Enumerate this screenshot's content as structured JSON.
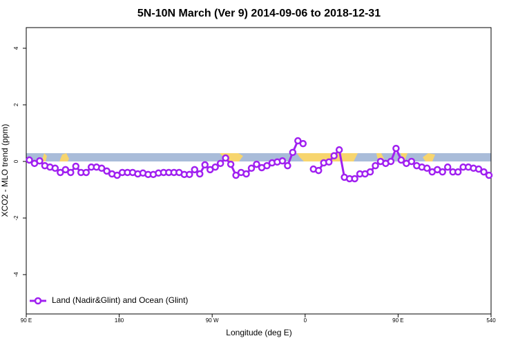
{
  "chart_data": {
    "type": "line",
    "title": "5N-10N March (Ver 9)   2014-09-06 to 2018-12-31",
    "x_label": "Longitude (deg E)",
    "y_label": "XCO2 - MLO trend (ppm)",
    "x": [
      93,
      98,
      103,
      108,
      113,
      118,
      123,
      128,
      133,
      138,
      143,
      148,
      153,
      158,
      163,
      168,
      173,
      178,
      183,
      188,
      193,
      198,
      203,
      208,
      213,
      218,
      223,
      228,
      233,
      238,
      243,
      248,
      253,
      258,
      263,
      268,
      273,
      278,
      283,
      288,
      293,
      298,
      303,
      308,
      313,
      318,
      323,
      328,
      333,
      338,
      343,
      348,
      353,
      358,
      363,
      368,
      373,
      378,
      383,
      388,
      393,
      398,
      403,
      408,
      413,
      418,
      423,
      428,
      433,
      438,
      443,
      448,
      453,
      458,
      463,
      468,
      473,
      478,
      483,
      488,
      493,
      498,
      503,
      508,
      513,
      518,
      523,
      528,
      533,
      538
    ],
    "series": [
      {
        "name": "Land (Nadir&Glint) and Ocean (Glint)",
        "color": "#a020f0",
        "values": [
          0.05,
          -0.07,
          0.02,
          -0.15,
          -0.2,
          -0.24,
          -0.39,
          -0.29,
          -0.39,
          -0.17,
          -0.39,
          -0.39,
          -0.2,
          -0.2,
          -0.24,
          -0.34,
          -0.44,
          -0.49,
          -0.39,
          -0.39,
          -0.39,
          -0.44,
          -0.41,
          -0.46,
          -0.46,
          -0.41,
          -0.39,
          -0.39,
          -0.39,
          -0.39,
          -0.46,
          -0.46,
          -0.29,
          -0.44,
          -0.12,
          -0.29,
          -0.2,
          -0.07,
          0.12,
          -0.1,
          -0.49,
          -0.39,
          -0.44,
          -0.24,
          -0.1,
          -0.22,
          -0.15,
          -0.05,
          -0.02,
          0.02,
          -0.15,
          0.32,
          0.73,
          0.63,
          null,
          -0.27,
          -0.32,
          -0.05,
          -0.02,
          0.2,
          0.41,
          -0.56,
          -0.61,
          -0.61,
          -0.44,
          -0.44,
          -0.37,
          -0.15,
          0,
          -0.07,
          0,
          0.46,
          0.05,
          -0.07,
          0,
          -0.15,
          -0.2,
          -0.24,
          -0.37,
          -0.29,
          -0.37,
          -0.2,
          -0.37,
          -0.37,
          -0.2,
          -0.2,
          -0.24,
          -0.27,
          -0.37,
          -0.49
        ]
      }
    ],
    "xlim": [
      90,
      540
    ],
    "xticks": [
      {
        "value": 90,
        "label": "90 E"
      },
      180,
      {
        "value": 270,
        "label": "90 W"
      },
      {
        "value": 360,
        "label": "0"
      },
      {
        "value": 450,
        "label": "90 E"
      },
      540
    ],
    "ylim": [
      -5.39,
      4.73
    ],
    "yticks": [
      -4,
      -2,
      0,
      2,
      4
    ],
    "legend": "bottom-left"
  }
}
